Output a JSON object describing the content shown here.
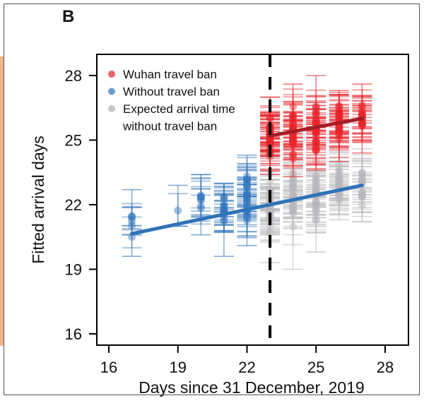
{
  "panel_label": "B",
  "chart_data": {
    "type": "scatter",
    "title": "",
    "xlabel": "Days since 31 December, 2019",
    "ylabel": "Fitted arrival days",
    "xlim": [
      15.5,
      29.0
    ],
    "ylim": [
      15.5,
      29.0
    ],
    "xticks": [
      16,
      19,
      22,
      25,
      28
    ],
    "yticks": [
      16,
      19,
      22,
      25,
      28
    ],
    "grid": false,
    "legend_position": "top-left",
    "travel_ban_day": 23,
    "series": [
      {
        "name": "Wuhan travel ban",
        "color": "#e8232b",
        "clusters": [
          {
            "x": 23,
            "center": 25.2,
            "low": 23.4,
            "high": 27.0,
            "count": 40
          },
          {
            "x": 24,
            "center": 25.4,
            "low": 23.3,
            "high": 27.6,
            "count": 34
          },
          {
            "x": 25,
            "center": 25.6,
            "low": 23.6,
            "high": 28.0,
            "count": 32
          },
          {
            "x": 26,
            "center": 25.9,
            "low": 24.0,
            "high": 27.3,
            "count": 30
          },
          {
            "x": 27,
            "center": 26.0,
            "low": 24.4,
            "high": 27.6,
            "count": 18
          }
        ]
      },
      {
        "name": "Without travel ban",
        "color": "#3677bd",
        "clusters": [
          {
            "x": 17,
            "center": 21.2,
            "low": 19.6,
            "high": 22.7,
            "count": 6
          },
          {
            "x": 19,
            "center": 21.9,
            "low": 21.0,
            "high": 22.9,
            "count": 1
          },
          {
            "x": 20,
            "center": 22.2,
            "low": 20.6,
            "high": 23.4,
            "count": 8
          },
          {
            "x": 21,
            "center": 21.8,
            "low": 19.6,
            "high": 23.0,
            "count": 18
          },
          {
            "x": 22,
            "center": 22.3,
            "low": 20.1,
            "high": 24.3,
            "count": 30
          }
        ]
      },
      {
        "name": "Expected arrival time without travel ban",
        "color": "#b8b8bc",
        "clusters": [
          {
            "x": 23,
            "center": 22.2,
            "low": 19.3,
            "high": 24.5,
            "count": 40
          },
          {
            "x": 24,
            "center": 22.4,
            "low": 19.0,
            "high": 24.6,
            "count": 34
          },
          {
            "x": 25,
            "center": 22.6,
            "low": 19.8,
            "high": 24.8,
            "count": 32
          },
          {
            "x": 26,
            "center": 23.0,
            "low": 21.3,
            "high": 25.0,
            "count": 30
          },
          {
            "x": 27,
            "center": 22.9,
            "low": 21.2,
            "high": 24.6,
            "count": 18
          }
        ]
      }
    ],
    "fit_lines": [
      {
        "name": "Wuhan travel ban fit",
        "color": "#a51c24",
        "x": [
          23,
          27
        ],
        "y": [
          25.2,
          26.0
        ]
      },
      {
        "name": "Without travel ban fit",
        "color": "#2f72b8",
        "x": [
          17,
          27
        ],
        "y": [
          20.65,
          22.9
        ]
      }
    ],
    "legend": [
      {
        "label": "Wuhan travel ban",
        "color": "#e8646a"
      },
      {
        "label": "Without travel ban",
        "color": "#6e9dcc"
      },
      {
        "label": "Expected arrival time",
        "color": "#c8c8cc"
      },
      {
        "label": "without travel ban",
        "color": null
      }
    ]
  }
}
